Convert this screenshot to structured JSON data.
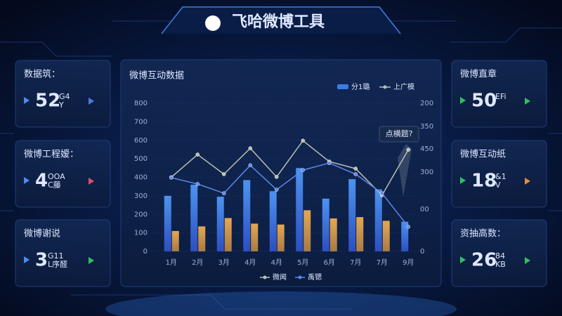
{
  "header": {
    "title": "飞哈微博工具"
  },
  "left_cards": [
    {
      "label": "数据筑：",
      "value": "52",
      "unit": [
        "G4",
        "Y"
      ]
    },
    {
      "label": "微博工程嫒：",
      "value": "4",
      "unit": [
        "OOA",
        "C藤"
      ]
    },
    {
      "label": "微博谢说",
      "value": "3",
      "unit": [
        "G11",
        "L序醛"
      ]
    }
  ],
  "right_cards": [
    {
      "label": "微博直章",
      "value": "50",
      "unit": [
        "EFi"
      ]
    },
    {
      "label": "微博互动纸",
      "value": "18",
      "unit": [
        "&1",
        "V"
      ]
    },
    {
      "label": "资抽高数：",
      "value": "26",
      "unit": [
        "84",
        "KB"
      ]
    }
  ],
  "chart_data": {
    "type": "bar",
    "title": "微博互动数据",
    "categories": [
      "1月",
      "2月",
      "3月",
      "4月",
      "4月",
      "5月",
      "6月",
      "7月",
      "7月",
      "9月"
    ],
    "series": [
      {
        "kind": "bar",
        "color": "#3a7be8",
        "values": [
          300,
          360,
          295,
          385,
          325,
          450,
          285,
          390,
          335,
          160
        ]
      },
      {
        "kind": "bar",
        "color": "#e0a050",
        "values": [
          110,
          135,
          180,
          150,
          145,
          222,
          178,
          185,
          165,
          null
        ]
      },
      {
        "kind": "line",
        "color": "#b9bfb0",
        "values": [
          400,
          523,
          417,
          557,
          402,
          598,
          485,
          447,
          303,
          549
        ]
      },
      {
        "kind": "line",
        "color": "#5f86e8",
        "values": [
          398,
          364,
          314,
          465,
          333,
          439,
          477,
          417,
          314,
          133
        ]
      }
    ],
    "ylim": [
      0,
      800
    ],
    "yticks": [
      0,
      100,
      200,
      300,
      400,
      500,
      600,
      700,
      800
    ],
    "right_axis_labels": [
      "200",
      "350",
      "450",
      "300",
      "00",
      "0"
    ],
    "legend_top": [
      {
        "name": "分1璐",
        "color": "#3a7be8",
        "kind": "bar"
      },
      {
        "name": "上广模",
        "color": "#b9bfb0",
        "kind": "line"
      }
    ],
    "legend_bottom": [
      {
        "name": "微闻",
        "color": "#b9bfb0"
      },
      {
        "name": "禹锶",
        "color": "#5f86e8"
      }
    ],
    "annotation": "点横题?"
  }
}
